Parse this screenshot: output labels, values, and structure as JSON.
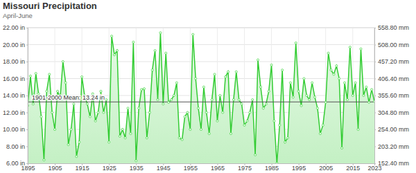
{
  "chart_data": {
    "type": "line",
    "title": "Missouri Precipitation",
    "subtitle": "April-June",
    "x": [
      1895,
      1896,
      1897,
      1898,
      1899,
      1900,
      1901,
      1902,
      1903,
      1904,
      1905,
      1906,
      1907,
      1908,
      1909,
      1910,
      1911,
      1912,
      1913,
      1914,
      1915,
      1916,
      1917,
      1918,
      1919,
      1920,
      1921,
      1922,
      1923,
      1924,
      1925,
      1926,
      1927,
      1928,
      1929,
      1930,
      1931,
      1932,
      1933,
      1934,
      1935,
      1936,
      1937,
      1938,
      1939,
      1940,
      1941,
      1942,
      1943,
      1944,
      1945,
      1946,
      1947,
      1948,
      1949,
      1950,
      1951,
      1952,
      1953,
      1954,
      1955,
      1956,
      1957,
      1958,
      1959,
      1960,
      1961,
      1962,
      1963,
      1964,
      1965,
      1966,
      1967,
      1968,
      1969,
      1970,
      1971,
      1972,
      1973,
      1974,
      1975,
      1976,
      1977,
      1978,
      1979,
      1980,
      1981,
      1982,
      1983,
      1984,
      1985,
      1986,
      1987,
      1988,
      1989,
      1990,
      1991,
      1992,
      1993,
      1994,
      1995,
      1996,
      1997,
      1998,
      1999,
      2000,
      2001,
      2002,
      2003,
      2004,
      2005,
      2006,
      2007,
      2008,
      2009,
      2010,
      2011,
      2012,
      2013,
      2014,
      2015,
      2016,
      2017,
      2018,
      2019,
      2020,
      2021,
      2022,
      2023
    ],
    "values": [
      12.8,
      16.3,
      13.0,
      16.6,
      14.2,
      11.5,
      6.4,
      14.5,
      16.5,
      12.0,
      10.0,
      14.5,
      13.8,
      18.0,
      15.5,
      8.2,
      10.0,
      13.0,
      6.8,
      8.5,
      16.2,
      14.0,
      13.0,
      11.5,
      14.2,
      11.0,
      12.0,
      14.5,
      12.0,
      13.5,
      8.5,
      21.0,
      18.8,
      19.3,
      9.2,
      10.0,
      9.0,
      12.5,
      9.5,
      20.3,
      6.3,
      12.5,
      14.7,
      14.8,
      9.0,
      12.0,
      17.0,
      19.3,
      13.5,
      21.4,
      13.0,
      19.0,
      13.2,
      13.5,
      14.0,
      15.5,
      9.0,
      8.8,
      11.5,
      12.0,
      10.0,
      21.2,
      16.0,
      12.5,
      10.0,
      15.0,
      12.0,
      9.5,
      13.5,
      16.5,
      11.0,
      14.0,
      12.0,
      16.2,
      16.8,
      9.5,
      13.5,
      16.8,
      13.5,
      13.0,
      10.5,
      11.0,
      12.0,
      13.5,
      7.0,
      18.2,
      15.0,
      12.5,
      13.0,
      14.5,
      17.6,
      11.0,
      6.0,
      10.5,
      17.0,
      8.5,
      9.0,
      15.5,
      13.8,
      20.2,
      14.5,
      12.8,
      16.0,
      14.0,
      13.5,
      15.5,
      13.8,
      12.5,
      9.5,
      10.5,
      13.2,
      19.0,
      17.0,
      16.5,
      17.5,
      16.0,
      7.8,
      15.5,
      13.5,
      19.7,
      14.0,
      15.5,
      10.0,
      19.5,
      14.0,
      15.0,
      13.2,
      14.7,
      13.3
    ],
    "color": "#33cc33",
    "marker": "circle",
    "xlim": [
      1895,
      2023
    ],
    "xticks": [
      1895,
      1905,
      1915,
      1925,
      1935,
      1945,
      1955,
      1965,
      1975,
      1985,
      1995,
      2005,
      2015,
      2023
    ],
    "ylim": [
      6,
      22
    ],
    "yticks": [
      {
        "value": 6,
        "label": "6.00 in"
      },
      {
        "value": 8,
        "label": "8.00 in"
      },
      {
        "value": 10,
        "label": "10.00 in"
      },
      {
        "value": 12,
        "label": "12.00 in"
      },
      {
        "value": 14,
        "label": "14.00 in"
      },
      {
        "value": 16,
        "label": "16.00 in"
      },
      {
        "value": 18,
        "label": "18.00 in"
      },
      {
        "value": 20,
        "label": "20.00 in"
      },
      {
        "value": 22,
        "label": "22.00 in"
      }
    ],
    "y2lim": [
      152.4,
      558.8
    ],
    "y2ticks": [
      {
        "value": 152.4,
        "label": "152.40 mm"
      },
      {
        "value": 203.2,
        "label": "203.20 mm"
      },
      {
        "value": 254,
        "label": "254.00 mm"
      },
      {
        "value": 304.8,
        "label": "304.80 mm"
      },
      {
        "value": 355.6,
        "label": "355.60 mm"
      },
      {
        "value": 406.4,
        "label": "406.40 mm"
      },
      {
        "value": 457.2,
        "label": "457.20 mm"
      },
      {
        "value": 508,
        "label": "508.00 mm"
      },
      {
        "value": 558.8,
        "label": "558.80 mm"
      }
    ],
    "annotations": [
      {
        "text": "1901-2000 Mean: 13.24 in",
        "y": 13.24
      }
    ],
    "grid": true
  }
}
